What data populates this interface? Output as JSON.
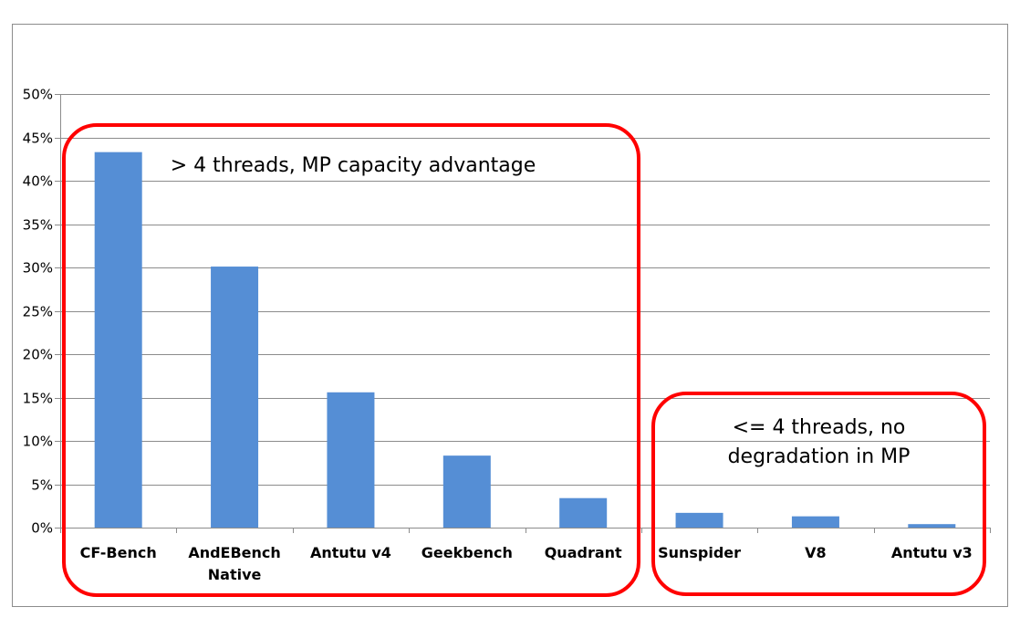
{
  "chart_data": {
    "type": "bar",
    "title": "",
    "xlabel": "",
    "ylabel": "",
    "categories": [
      [
        "CF-Bench"
      ],
      [
        "AndEBench",
        "Native"
      ],
      [
        "Antutu v4"
      ],
      [
        "Geekbench"
      ],
      [
        "Quadrant"
      ],
      [
        "Sunspider"
      ],
      [
        "V8"
      ],
      [
        "Antutu v3"
      ]
    ],
    "values": [
      43.3,
      30.1,
      15.6,
      8.3,
      3.4,
      1.7,
      1.3,
      0.4
    ],
    "ylim": [
      0,
      50
    ],
    "yticks": [
      0,
      5,
      10,
      15,
      20,
      25,
      30,
      35,
      40,
      45,
      50
    ],
    "ytick_labels": [
      "0%",
      "5%",
      "10%",
      "15%",
      "20%",
      "25%",
      "30%",
      "35%",
      "40%",
      "45%",
      "50%"
    ],
    "grid": true,
    "legend": "none",
    "bar_color": "#558ed5",
    "annotations": [
      {
        "lines": [
          "> 4 threads, MP capacity advantage"
        ],
        "covers_categories": [
          0,
          4
        ],
        "box_color": "#ff0000"
      },
      {
        "lines": [
          "<= 4 threads, no",
          "degradation in MP"
        ],
        "covers_categories": [
          5,
          7
        ],
        "box_color": "#ff0000"
      }
    ]
  }
}
